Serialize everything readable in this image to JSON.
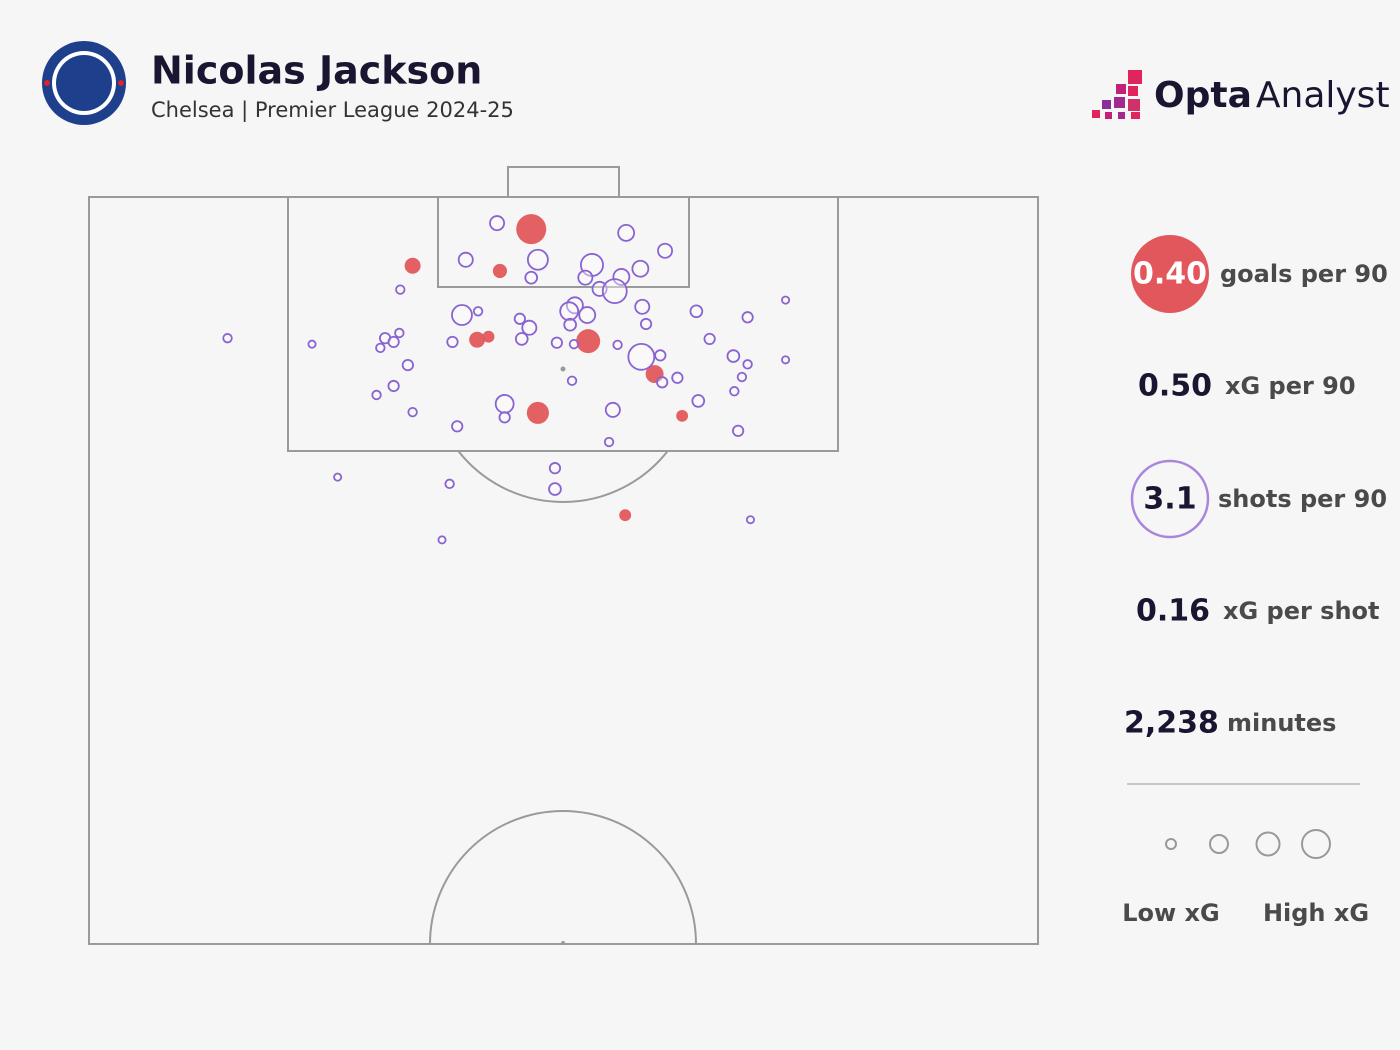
{
  "title": "Nicolas Jackson",
  "subtitle": "Chelsea | Premier League 2024-25",
  "brand": {
    "bold": "Opta",
    "light": "Analyst"
  },
  "chart_data": {
    "type": "scatter",
    "xlim": [
      0,
      100
    ],
    "ylim": [
      0,
      100
    ],
    "series": [
      {
        "color": "#e2575b",
        "filled": true,
        "x": [
          46.6,
          34.1,
          43.3,
          40.9,
          42.1,
          52.6,
          59.6,
          47.3,
          62.5,
          56.5
        ],
        "y": [
          4.3,
          9.2,
          9.9,
          19.1,
          18.7,
          19.3,
          23.7,
          28.9,
          29.3,
          42.6
        ],
        "sizes": [
          0.66,
          0.14,
          0.1,
          0.14,
          0.06,
          0.39,
          0.19,
          0.32,
          0.06,
          0.06
        ]
      },
      {
        "color": "#8a63d2",
        "filled": false,
        "x": [
          43.0,
          56.6,
          60.7,
          39.7,
          47.3,
          53.0,
          56.1,
          58.1,
          52.3,
          46.6,
          53.8,
          55.4,
          32.8,
          73.4,
          41.0,
          39.3,
          51.2,
          50.6,
          52.5,
          58.3,
          64.0,
          69.4,
          45.4,
          46.4,
          50.7,
          58.7,
          31.2,
          32.7,
          32.1,
          30.7,
          38.3,
          45.6,
          49.3,
          51.1,
          14.6,
          23.5,
          55.7,
          58.2,
          60.2,
          65.4,
          67.9,
          69.4,
          73.4,
          33.6,
          68.8,
          50.9,
          60.4,
          62.0,
          32.1,
          30.3,
          68.0,
          43.8,
          43.8,
          55.2,
          64.2,
          34.1,
          38.8,
          68.4,
          54.8,
          49.1,
          49.1,
          38.0,
          26.2,
          37.2,
          69.7
        ],
        "y": [
          3.5,
          4.8,
          7.2,
          8.4,
          8.4,
          9.1,
          10.7,
          9.6,
          10.8,
          10.8,
          12.3,
          12.6,
          12.4,
          13.8,
          15.3,
          15.8,
          14.5,
          15.3,
          15.8,
          14.7,
          15.3,
          16.1,
          16.3,
          17.5,
          17.1,
          17.0,
          18.9,
          18.2,
          19.4,
          20.2,
          19.4,
          19.0,
          19.5,
          19.7,
          18.9,
          19.7,
          19.8,
          21.4,
          21.2,
          19.0,
          21.3,
          22.4,
          21.8,
          22.5,
          24.1,
          24.6,
          24.8,
          24.2,
          25.3,
          26.5,
          26.0,
          27.7,
          29.5,
          28.5,
          27.3,
          28.8,
          30.7,
          31.3,
          32.8,
          36.3,
          39.1,
          38.4,
          37.5,
          45.9,
          43.2
        ],
        "sizes": [
          0.1,
          0.14,
          0.1,
          0.1,
          0.25,
          0.32,
          0.14,
          0.14,
          0.1,
          0.06,
          0.1,
          0.39,
          0.02,
          0.01,
          0.02,
          0.25,
          0.14,
          0.19,
          0.14,
          0.1,
          0.06,
          0.04,
          0.04,
          0.1,
          0.06,
          0.04,
          0.04,
          0.02,
          0.04,
          0.02,
          0.04,
          0.06,
          0.04,
          0.02,
          0.02,
          0.01,
          0.02,
          0.47,
          0.04,
          0.04,
          0.06,
          0.02,
          0.01,
          0.04,
          0.02,
          0.02,
          0.04,
          0.04,
          0.04,
          0.02,
          0.02,
          0.19,
          0.04,
          0.1,
          0.06,
          0.02,
          0.04,
          0.04,
          0.02,
          0.04,
          0.06,
          0.02,
          0.01,
          0.01,
          0.01
        ]
      }
    ]
  },
  "panel": {
    "stats": [
      {
        "value": "0.40",
        "label": "goals per 90"
      },
      {
        "value": "0.50",
        "label": "xG per 90"
      },
      {
        "value": "3.1",
        "label": "shots per 90"
      },
      {
        "value": "0.16",
        "label": "xG per shot"
      },
      {
        "value": "2,238",
        "label": "minutes"
      }
    ],
    "legend": {
      "low": "Low xG",
      "high": "High xG"
    }
  }
}
